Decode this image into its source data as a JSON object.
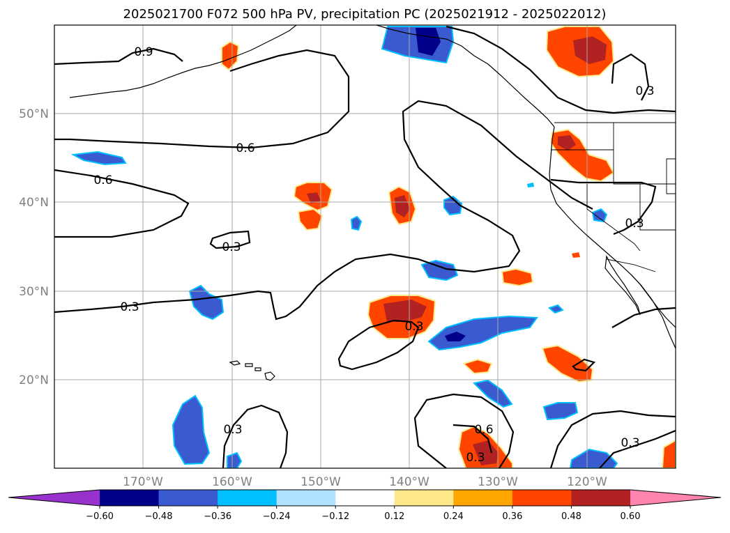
{
  "title": "2025021700 F072 500 hPa PV, precipitation PC (2025021912 - 2025022012)",
  "lon_labels": [
    "170°W",
    "160°W",
    "150°W",
    "140°W",
    "130°W",
    "120°W"
  ],
  "lat_labels": [
    "50°N",
    "40°N",
    "30°N",
    "20°N"
  ],
  "colorbar": {
    "tick_labels": [
      "−0.60",
      "−0.48",
      "−0.36",
      "−0.24",
      "−0.12",
      "0.12",
      "0.24",
      "0.36",
      "0.48",
      "0.60"
    ],
    "colors": {
      "under": "#9932cc",
      "levels": [
        "#00008b",
        "#3a5bd0",
        "#00bfff",
        "#b0e2ff",
        "#ffffff",
        "#ffe88a",
        "#ffa500",
        "#ff4500",
        "#b22222"
      ],
      "over": "#ff85b0"
    }
  },
  "contour_labels": [
    "0.9",
    "0.6",
    "0.6",
    "0.3",
    "0.3",
    "0.3",
    "0.3",
    "0.3",
    "0.3",
    "0.6",
    "0.3",
    "0.3"
  ],
  "map": {
    "projection": "PlateCarree",
    "lon_range": [
      "180°W",
      "110°W"
    ],
    "lat_range": [
      "10°N",
      "60°N"
    ],
    "grid": true
  }
}
